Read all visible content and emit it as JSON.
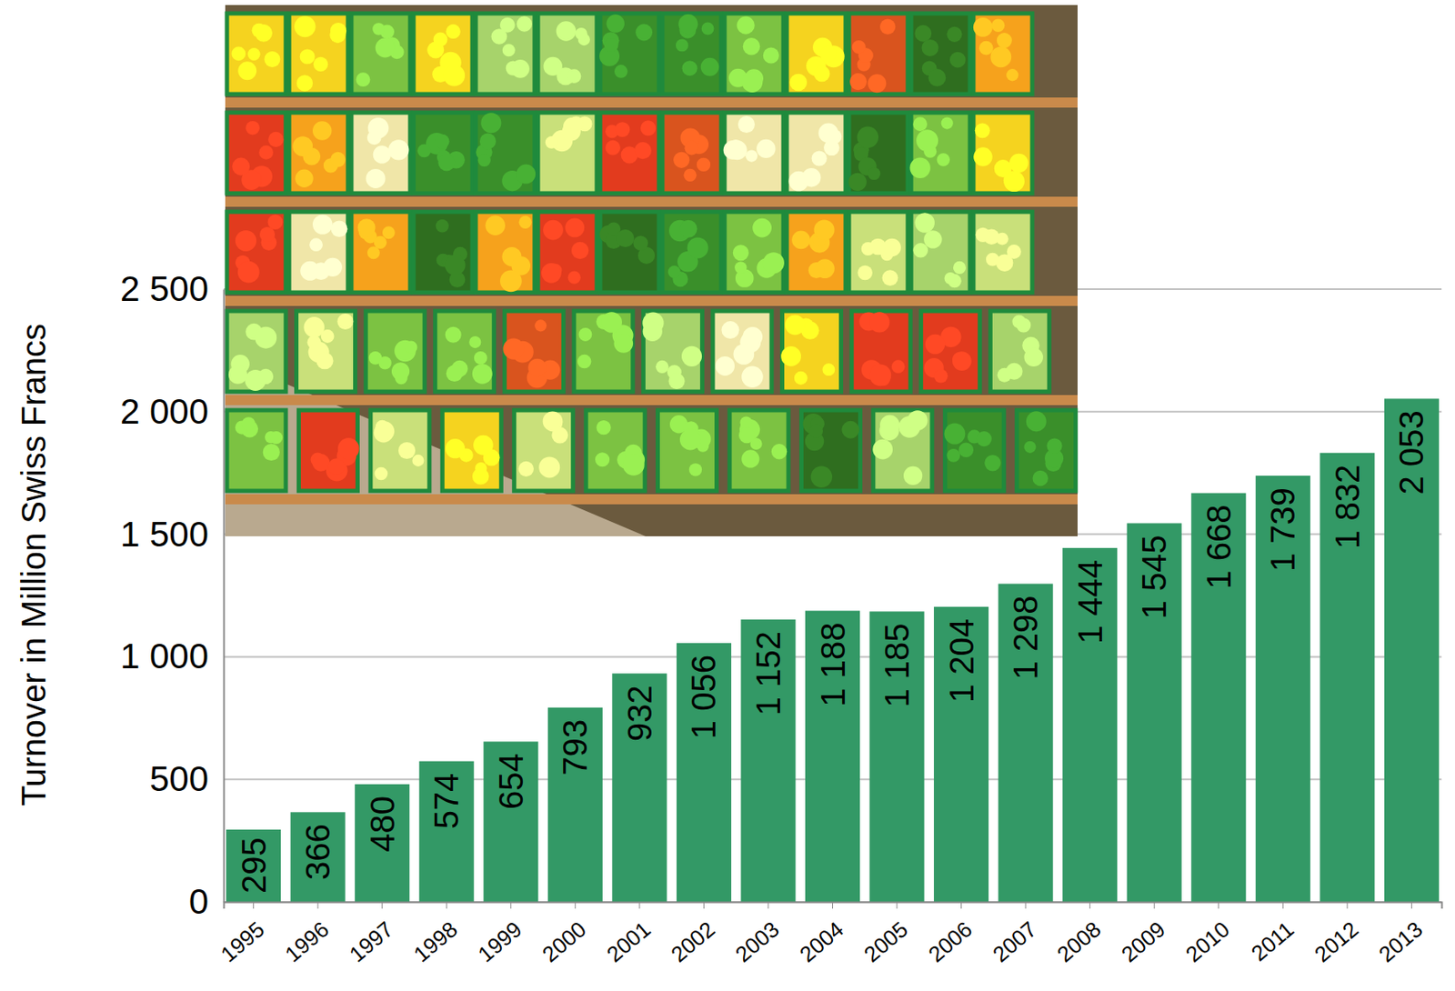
{
  "chart_data": {
    "type": "bar",
    "y_label": "Turnover in Million Swiss Francs",
    "categories": [
      "1995",
      "1996",
      "1997",
      "1998",
      "1999",
      "2000",
      "2001",
      "2002",
      "2003",
      "2004",
      "2005",
      "2006",
      "2007",
      "2008",
      "2009",
      "2010",
      "2011",
      "2012",
      "2013"
    ],
    "values": [
      295,
      366,
      480,
      574,
      654,
      793,
      932,
      1056,
      1152,
      1188,
      1185,
      1204,
      1298,
      1444,
      1545,
      1668,
      1739,
      1832,
      2053
    ],
    "value_labels": [
      "295",
      "366",
      "480",
      "574",
      "654",
      "793",
      "932",
      "1 056",
      "1 152",
      "1 188",
      "1 185",
      "1 204",
      "1 298",
      "1 444",
      "1 545",
      "1 668",
      "1 739",
      "1 832",
      "2 053"
    ],
    "color": "#339966",
    "ylim": [
      0,
      2500
    ],
    "yticks": [
      0,
      500,
      {
        "value": 1000,
        "label": "1 000"
      },
      {
        "value": 1500,
        "label": "1 500"
      },
      {
        "value": 2000,
        "label": "2 000"
      },
      {
        "value": 2500,
        "label": "2 500"
      }
    ],
    "grid": true,
    "data_labels": true
  }
}
